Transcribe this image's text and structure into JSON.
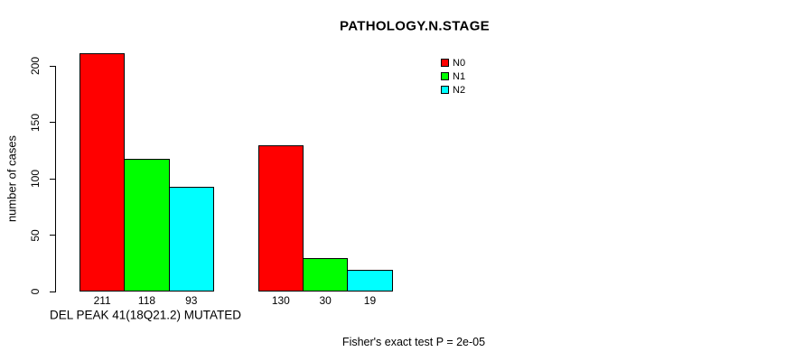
{
  "chart_data": {
    "type": "bar",
    "title": "PATHOLOGY.N.STAGE",
    "ylabel": "number of cases",
    "xlabel": "DEL PEAK 41(18Q21.2) MUTATED",
    "footnote": "Fisher's exact test P = 2e-05",
    "groups": 2,
    "series": [
      {
        "name": "N0",
        "color": "#ff0000",
        "values": [
          211,
          130
        ]
      },
      {
        "name": "N1",
        "color": "#00ff00",
        "values": [
          118,
          30
        ]
      },
      {
        "name": "N2",
        "color": "#00ffff",
        "values": [
          93,
          19
        ]
      }
    ],
    "yticks": [
      0,
      50,
      100,
      150,
      200
    ],
    "ylim": [
      0,
      200
    ],
    "grid": false,
    "legend_position": "top-right",
    "bar_border_color": "#000000",
    "axis_color": "#000000",
    "background_color": "#ffffff"
  }
}
